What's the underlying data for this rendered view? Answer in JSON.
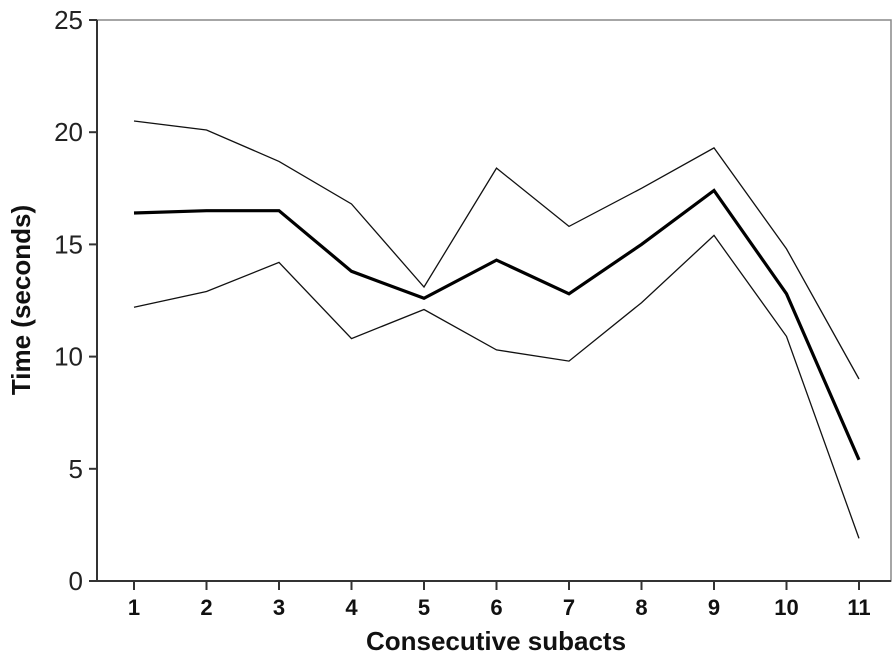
{
  "chart_data": {
    "type": "line",
    "title": "",
    "xlabel": "Consecutive subacts",
    "ylabel": "Time (seconds)",
    "categories": [
      "1",
      "2",
      "3",
      "4",
      "5",
      "6",
      "7",
      "8",
      "9",
      "10",
      "11"
    ],
    "ylim": [
      0,
      25
    ],
    "yticks": [
      0,
      5,
      10,
      15,
      20,
      25
    ],
    "grid": false,
    "legend": "none",
    "series": [
      {
        "values": [
          20.5,
          20.1,
          18.7,
          16.8,
          13.1,
          18.4,
          15.8,
          17.5,
          19.3,
          14.8,
          9.0
        ],
        "stroke": "#111111",
        "weight": "thin"
      },
      {
        "values": [
          16.4,
          16.5,
          16.5,
          13.8,
          12.6,
          14.3,
          12.8,
          15.0,
          17.4,
          12.8,
          5.4
        ],
        "stroke": "#000000",
        "weight": "thick"
      },
      {
        "values": [
          12.2,
          12.9,
          14.2,
          10.8,
          12.1,
          10.3,
          9.8,
          12.4,
          15.4,
          10.9,
          1.9
        ],
        "stroke": "#111111",
        "weight": "thin"
      }
    ]
  }
}
